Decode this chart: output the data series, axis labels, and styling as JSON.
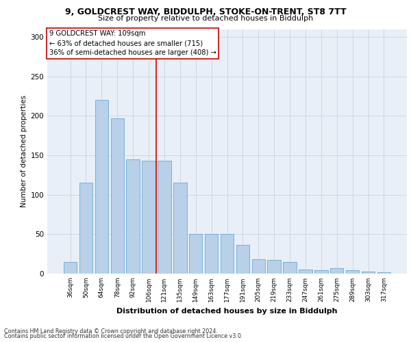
{
  "title1": "9, GOLDCREST WAY, BIDDULPH, STOKE-ON-TRENT, ST8 7TT",
  "title2": "Size of property relative to detached houses in Biddulph",
  "xlabel": "Distribution of detached houses by size in Biddulph",
  "ylabel": "Number of detached properties",
  "categories": [
    "36sqm",
    "50sqm",
    "64sqm",
    "78sqm",
    "92sqm",
    "106sqm",
    "121sqm",
    "135sqm",
    "149sqm",
    "163sqm",
    "177sqm",
    "191sqm",
    "205sqm",
    "219sqm",
    "233sqm",
    "247sqm",
    "261sqm",
    "275sqm",
    "289sqm",
    "303sqm",
    "317sqm"
  ],
  "values": [
    15,
    115,
    220,
    197,
    145,
    143,
    143,
    115,
    50,
    50,
    50,
    36,
    18,
    17,
    15,
    5,
    4,
    7,
    4,
    3,
    2
  ],
  "bar_color": "#b8d0e8",
  "bar_edge_color": "#6aaad4",
  "vline_color": "#cc0000",
  "vline_x": 5.5,
  "annotation_text": "9 GOLDCREST WAY: 109sqm\n← 63% of detached houses are smaller (715)\n36% of semi-detached houses are larger (408) →",
  "annotation_box_color": "#ffffff",
  "annotation_box_edge": "#cc0000",
  "ylim": [
    0,
    310
  ],
  "yticks": [
    0,
    50,
    100,
    150,
    200,
    250,
    300
  ],
  "bg_color": "#e8eff7",
  "footer1": "Contains HM Land Registry data © Crown copyright and database right 2024.",
  "footer2": "Contains public sector information licensed under the Open Government Licence v3.0."
}
